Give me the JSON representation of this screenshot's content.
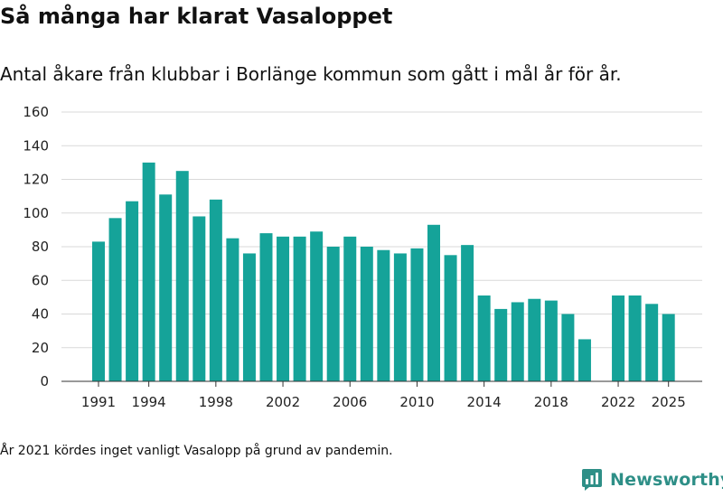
{
  "title": "Så många har klarat Vasaloppet",
  "subtitle": "Antal åkare från klubbar i Borlänge kommun som gått i mål år för år.",
  "note": "År 2021 kördes inget vanligt Vasalopp på grund av pandemin.",
  "brand": {
    "name": "Newsworthy",
    "color": "#2e8f87"
  },
  "colors": {
    "bar": "#15a399",
    "grid": "#d9d9d9",
    "axis": "#333333"
  },
  "chart_data": {
    "type": "bar",
    "x": [
      1991,
      1992,
      1993,
      1994,
      1995,
      1996,
      1997,
      1998,
      1999,
      2000,
      2001,
      2002,
      2003,
      2004,
      2005,
      2006,
      2007,
      2008,
      2009,
      2010,
      2011,
      2012,
      2013,
      2014,
      2015,
      2016,
      2017,
      2018,
      2019,
      2020,
      2021,
      2022,
      2023,
      2024,
      2025
    ],
    "values": [
      83,
      97,
      107,
      130,
      111,
      125,
      98,
      108,
      85,
      76,
      88,
      86,
      86,
      89,
      80,
      86,
      80,
      78,
      76,
      79,
      93,
      75,
      81,
      51,
      43,
      47,
      49,
      48,
      40,
      25,
      null,
      51,
      51,
      46,
      40
    ],
    "ylim": [
      0,
      160
    ],
    "yticks": [
      0,
      20,
      40,
      60,
      80,
      100,
      120,
      140,
      160
    ],
    "xticks": [
      1991,
      1994,
      1998,
      2002,
      2006,
      2010,
      2014,
      2018,
      2022,
      2025
    ],
    "xlabel": "",
    "ylabel": "",
    "grid": true
  }
}
